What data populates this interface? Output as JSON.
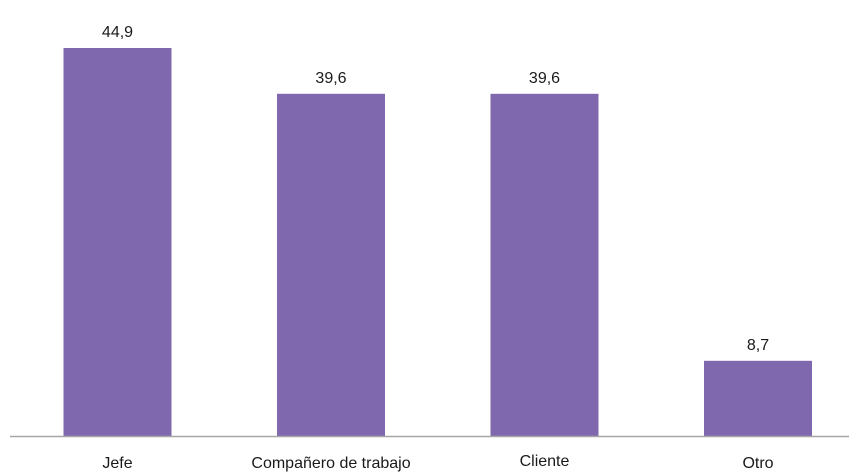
{
  "chart_data": {
    "type": "bar",
    "categories": [
      "Jefe",
      "Compañero de trabajo",
      "Cliente",
      "Otro"
    ],
    "values": [
      44.9,
      39.6,
      39.6,
      8.7
    ],
    "value_labels": [
      "44,9",
      "39,6",
      "39,6",
      "8,7"
    ],
    "title": "",
    "xlabel": "",
    "ylabel": "",
    "ylim": [
      0,
      44.9
    ],
    "grid": false,
    "legend": "none",
    "bar_color": "#8068ae",
    "axis_color": "#a6a6a6"
  }
}
